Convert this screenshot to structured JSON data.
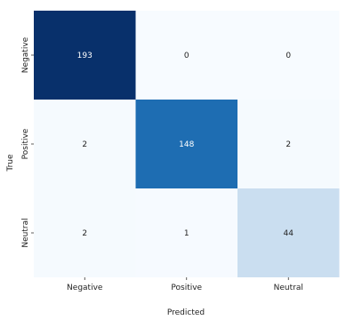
{
  "chart_data": {
    "type": "heatmap",
    "xlabel": "Predicted",
    "ylabel": "True",
    "x_categories": [
      "Negative",
      "Positive",
      "Neutral"
    ],
    "y_categories": [
      "Negative",
      "Positive",
      "Neutral"
    ],
    "values": [
      [
        193,
        0,
        0
      ],
      [
        2,
        148,
        2
      ],
      [
        2,
        1,
        44
      ]
    ],
    "colormap": "Blues",
    "color_low": "#f7fbff",
    "color_high": "#08306b",
    "dark_text_color": "#222222",
    "light_text_color": "#ffffff",
    "grid": false,
    "legend": "none"
  }
}
